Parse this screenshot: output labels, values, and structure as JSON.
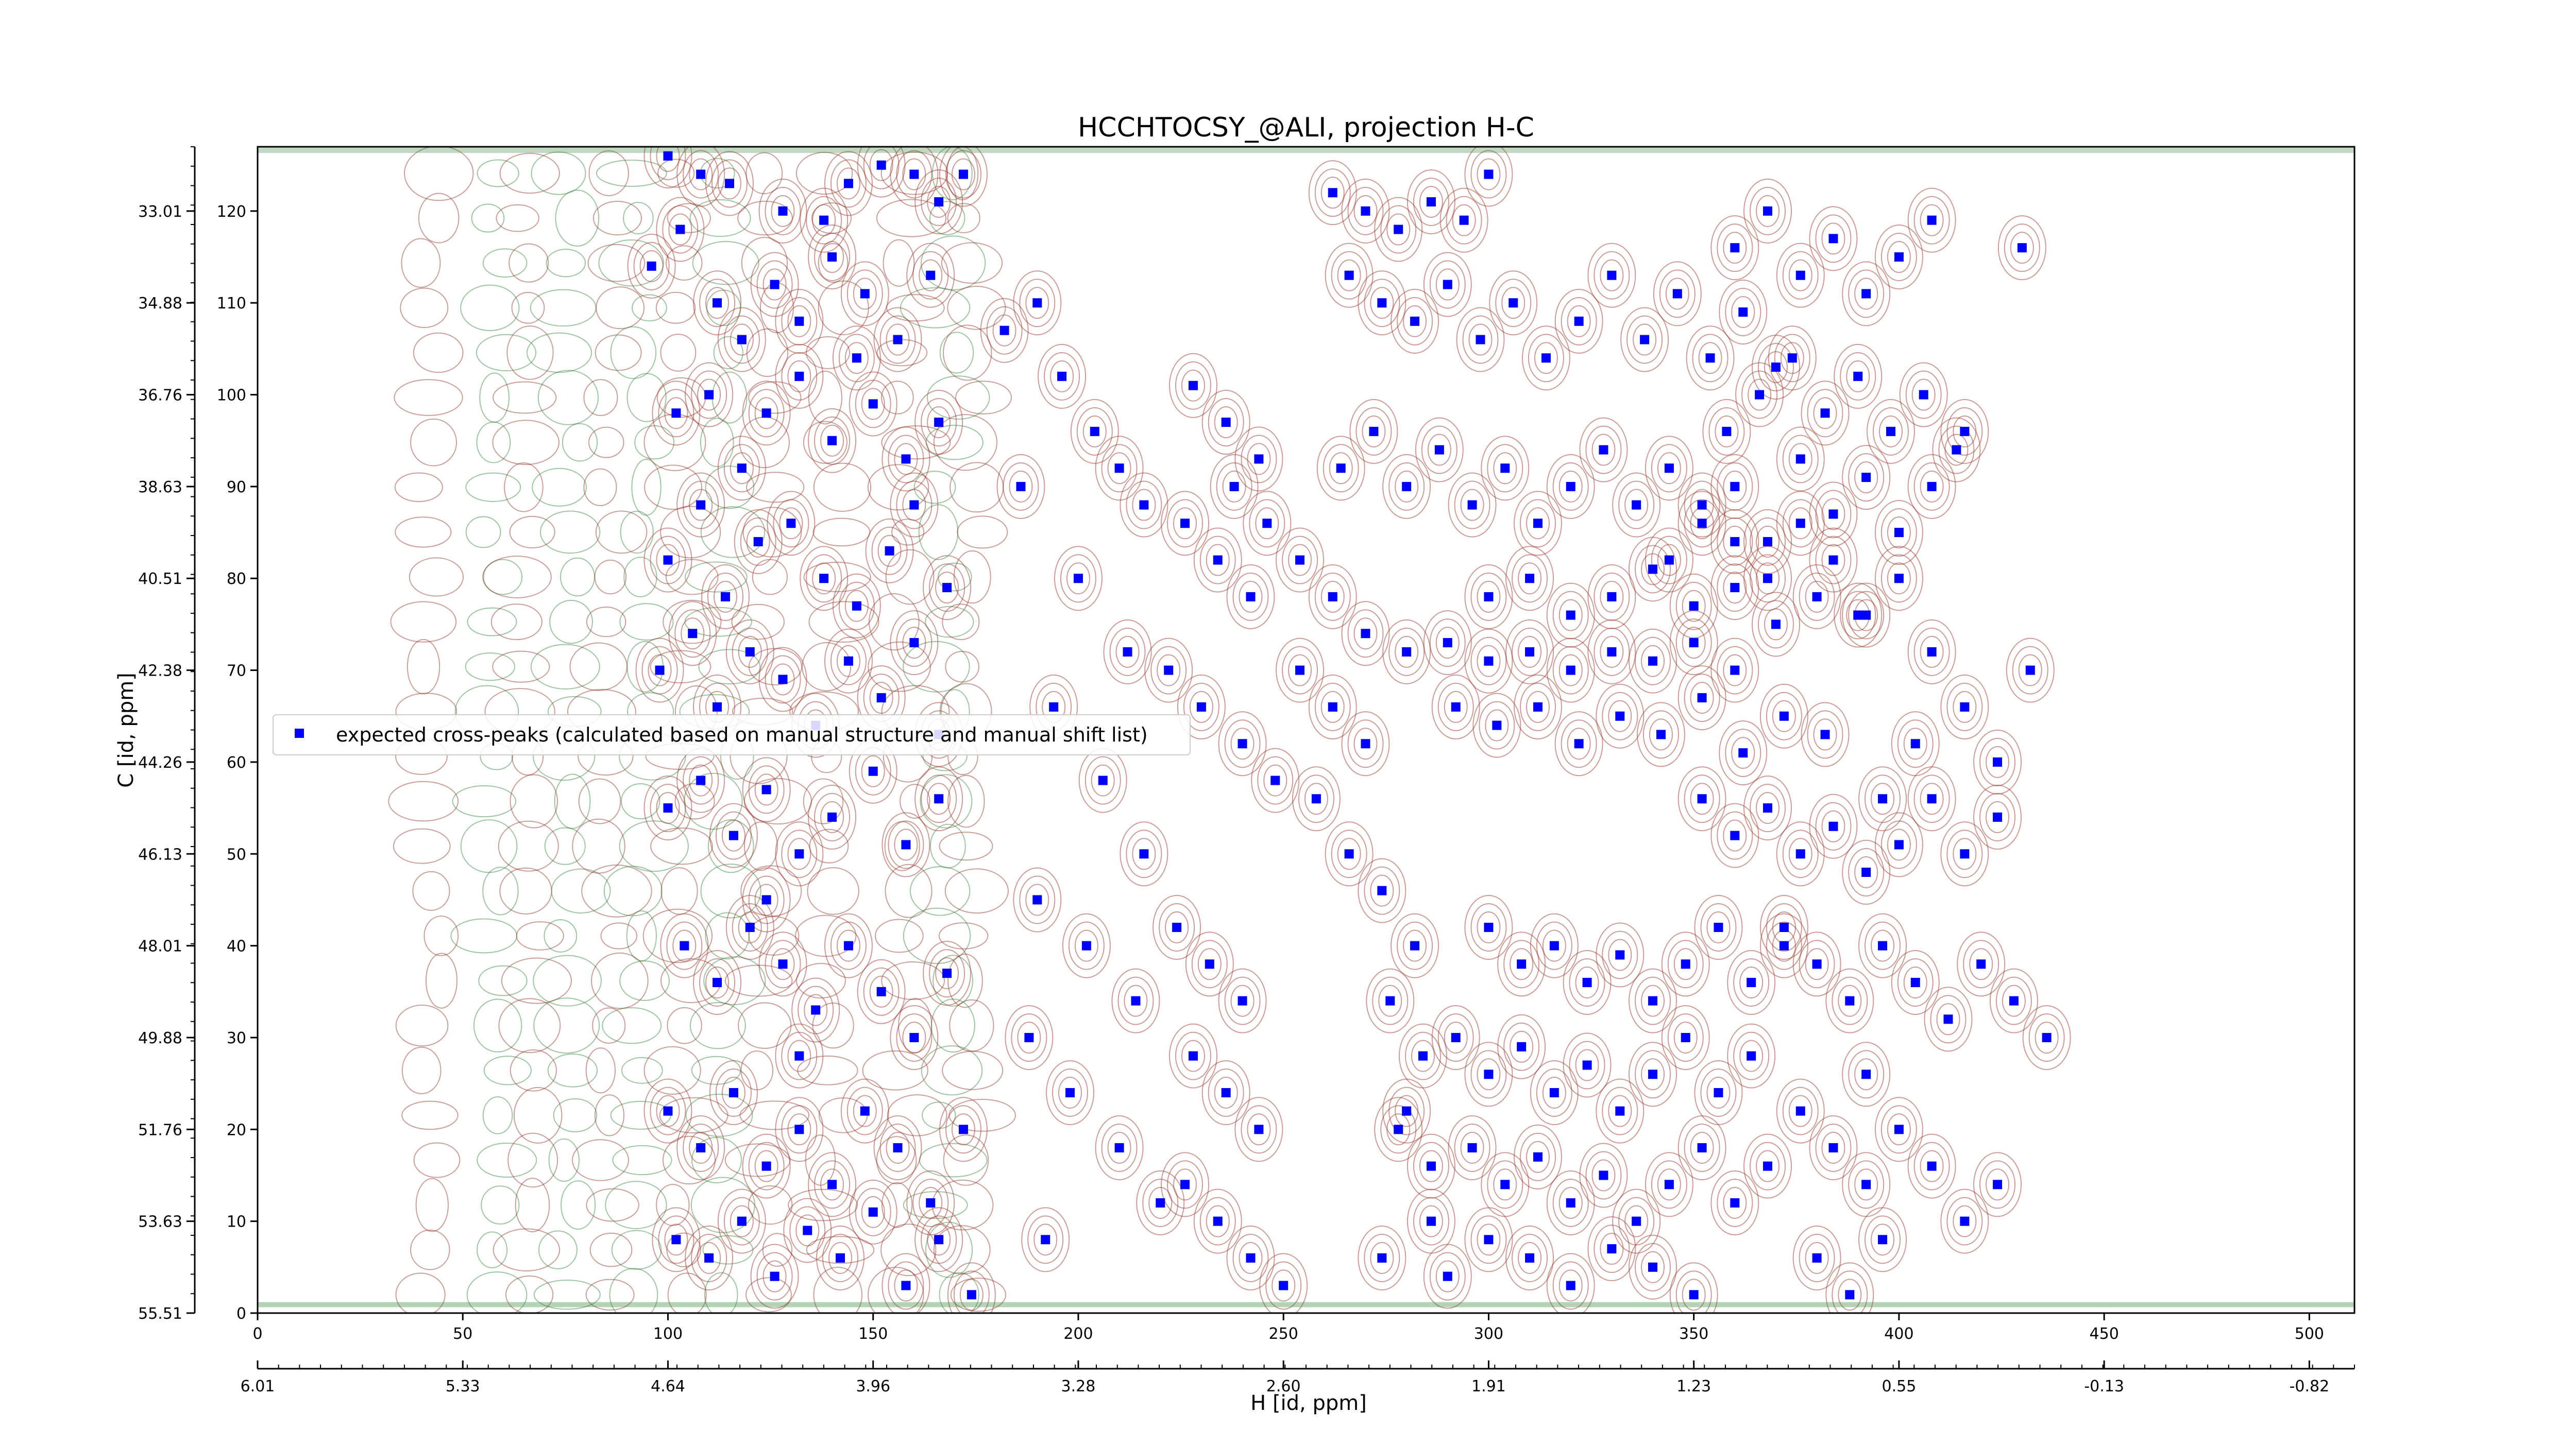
{
  "chart_data": {
    "type": "scatter",
    "title": "HCCHTOCSY_@ALI, projection H-C",
    "xlabel": "H [id, ppm]",
    "ylabel": "C [id, ppm]",
    "x_index_ticks": [
      "0",
      "50",
      "100",
      "150",
      "200",
      "250",
      "300",
      "350",
      "400",
      "450",
      "500"
    ],
    "x_ppm_ticks": [
      "6.01",
      "5.33",
      "4.64",
      "3.96",
      "3.28",
      "2.60",
      "1.91",
      "1.23",
      "0.55",
      "-0.13",
      "-0.82"
    ],
    "y_index_ticks": [
      "0",
      "10",
      "20",
      "30",
      "40",
      "50",
      "60",
      "70",
      "80",
      "90",
      "100",
      "110",
      "120"
    ],
    "y_ppm_ticks": [
      "55.51",
      "53.63",
      "51.76",
      "49.88",
      "48.01",
      "46.13",
      "44.26",
      "42.38",
      "40.51",
      "38.63",
      "36.76",
      "34.88",
      "33.01"
    ],
    "xlim": [
      0,
      511
    ],
    "ylim": [
      0,
      127
    ],
    "legend": {
      "placement": "center-left",
      "entries": [
        {
          "label": "expected cross-peaks (calculated based on manual structure and manual shift list)",
          "marker": "square",
          "color": "#0000ff"
        }
      ]
    },
    "series": [
      {
        "name": "expected cross-peaks (calculated based on manual structure and manual shift list)",
        "color": "#0000ff",
        "points": [
          [
            100,
            126
          ],
          [
            108,
            124
          ],
          [
            115,
            123
          ],
          [
            128,
            120
          ],
          [
            138,
            119
          ],
          [
            144,
            123
          ],
          [
            152,
            125
          ],
          [
            160,
            124
          ],
          [
            166,
            121
          ],
          [
            172,
            124
          ],
          [
            96,
            114
          ],
          [
            103,
            118
          ],
          [
            112,
            110
          ],
          [
            118,
            106
          ],
          [
            126,
            112
          ],
          [
            132,
            108
          ],
          [
            140,
            115
          ],
          [
            148,
            111
          ],
          [
            156,
            106
          ],
          [
            164,
            113
          ],
          [
            102,
            98
          ],
          [
            110,
            100
          ],
          [
            118,
            92
          ],
          [
            124,
            98
          ],
          [
            132,
            102
          ],
          [
            140,
            95
          ],
          [
            150,
            99
          ],
          [
            158,
            93
          ],
          [
            166,
            97
          ],
          [
            146,
            104
          ],
          [
            100,
            82
          ],
          [
            108,
            88
          ],
          [
            114,
            78
          ],
          [
            122,
            84
          ],
          [
            130,
            86
          ],
          [
            138,
            80
          ],
          [
            146,
            77
          ],
          [
            154,
            83
          ],
          [
            160,
            88
          ],
          [
            168,
            79
          ],
          [
            98,
            70
          ],
          [
            106,
            74
          ],
          [
            112,
            66
          ],
          [
            120,
            72
          ],
          [
            128,
            69
          ],
          [
            136,
            64
          ],
          [
            144,
            71
          ],
          [
            152,
            67
          ],
          [
            160,
            73
          ],
          [
            166,
            63
          ],
          [
            100,
            55
          ],
          [
            108,
            58
          ],
          [
            116,
            52
          ],
          [
            124,
            57
          ],
          [
            132,
            50
          ],
          [
            140,
            54
          ],
          [
            150,
            59
          ],
          [
            158,
            51
          ],
          [
            166,
            56
          ],
          [
            124,
            45
          ],
          [
            104,
            40
          ],
          [
            112,
            36
          ],
          [
            120,
            42
          ],
          [
            128,
            38
          ],
          [
            136,
            33
          ],
          [
            144,
            40
          ],
          [
            152,
            35
          ],
          [
            160,
            30
          ],
          [
            168,
            37
          ],
          [
            132,
            28
          ],
          [
            100,
            22
          ],
          [
            108,
            18
          ],
          [
            116,
            24
          ],
          [
            124,
            16
          ],
          [
            132,
            20
          ],
          [
            140,
            14
          ],
          [
            148,
            22
          ],
          [
            156,
            18
          ],
          [
            164,
            12
          ],
          [
            172,
            20
          ],
          [
            102,
            8
          ],
          [
            110,
            6
          ],
          [
            118,
            10
          ],
          [
            126,
            4
          ],
          [
            134,
            9
          ],
          [
            142,
            6
          ],
          [
            150,
            11
          ],
          [
            158,
            3
          ],
          [
            166,
            8
          ],
          [
            174,
            2
          ],
          [
            182,
            107
          ],
          [
            190,
            110
          ],
          [
            196,
            102
          ],
          [
            204,
            96
          ],
          [
            210,
            92
          ],
          [
            216,
            88
          ],
          [
            186,
            90
          ],
          [
            200,
            80
          ],
          [
            212,
            72
          ],
          [
            194,
            66
          ],
          [
            206,
            58
          ],
          [
            216,
            50
          ],
          [
            190,
            45
          ],
          [
            202,
            40
          ],
          [
            214,
            34
          ],
          [
            188,
            30
          ],
          [
            198,
            24
          ],
          [
            210,
            18
          ],
          [
            220,
            12
          ],
          [
            192,
            8
          ],
          [
            228,
            101
          ],
          [
            236,
            97
          ],
          [
            244,
            93
          ],
          [
            226,
            86
          ],
          [
            234,
            82
          ],
          [
            242,
            78
          ],
          [
            222,
            70
          ],
          [
            230,
            66
          ],
          [
            240,
            62
          ],
          [
            248,
            58
          ],
          [
            224,
            42
          ],
          [
            232,
            38
          ],
          [
            240,
            34
          ],
          [
            228,
            28
          ],
          [
            236,
            24
          ],
          [
            244,
            20
          ],
          [
            226,
            14
          ],
          [
            234,
            10
          ],
          [
            242,
            6
          ],
          [
            250,
            3
          ],
          [
            262,
            122
          ],
          [
            270,
            120
          ],
          [
            278,
            118
          ],
          [
            286,
            121
          ],
          [
            294,
            119
          ],
          [
            300,
            124
          ],
          [
            266,
            113
          ],
          [
            274,
            110
          ],
          [
            282,
            108
          ],
          [
            290,
            112
          ],
          [
            298,
            106
          ],
          [
            306,
            110
          ],
          [
            314,
            104
          ],
          [
            322,
            108
          ],
          [
            330,
            113
          ],
          [
            338,
            106
          ],
          [
            346,
            111
          ],
          [
            354,
            104
          ],
          [
            362,
            109
          ],
          [
            370,
            103
          ],
          [
            264,
            92
          ],
          [
            272,
            96
          ],
          [
            280,
            90
          ],
          [
            288,
            94
          ],
          [
            296,
            88
          ],
          [
            304,
            92
          ],
          [
            312,
            86
          ],
          [
            320,
            90
          ],
          [
            328,
            94
          ],
          [
            336,
            88
          ],
          [
            344,
            92
          ],
          [
            352,
            86
          ],
          [
            360,
            90
          ],
          [
            368,
            84
          ],
          [
            376,
            93
          ],
          [
            384,
            87
          ],
          [
            392,
            91
          ],
          [
            400,
            85
          ],
          [
            408,
            90
          ],
          [
            416,
            96
          ],
          [
            270,
            74
          ],
          [
            280,
            72
          ],
          [
            290,
            73
          ],
          [
            300,
            71
          ],
          [
            310,
            72
          ],
          [
            320,
            70
          ],
          [
            330,
            72
          ],
          [
            340,
            71
          ],
          [
            350,
            73
          ],
          [
            360,
            70
          ],
          [
            292,
            66
          ],
          [
            302,
            64
          ],
          [
            312,
            66
          ],
          [
            322,
            62
          ],
          [
            332,
            65
          ],
          [
            342,
            63
          ],
          [
            352,
            67
          ],
          [
            362,
            61
          ],
          [
            372,
            65
          ],
          [
            382,
            63
          ],
          [
            300,
            78
          ],
          [
            310,
            80
          ],
          [
            320,
            76
          ],
          [
            330,
            78
          ],
          [
            340,
            81
          ],
          [
            350,
            77
          ],
          [
            360,
            79
          ],
          [
            370,
            75
          ],
          [
            380,
            78
          ],
          [
            390,
            76
          ],
          [
            352,
            56
          ],
          [
            360,
            52
          ],
          [
            368,
            55
          ],
          [
            376,
            50
          ],
          [
            384,
            53
          ],
          [
            392,
            48
          ],
          [
            400,
            51
          ],
          [
            408,
            56
          ],
          [
            416,
            50
          ],
          [
            424,
            54
          ],
          [
            300,
            42
          ],
          [
            308,
            38
          ],
          [
            316,
            40
          ],
          [
            324,
            36
          ],
          [
            332,
            39
          ],
          [
            340,
            34
          ],
          [
            348,
            38
          ],
          [
            356,
            42
          ],
          [
            364,
            36
          ],
          [
            372,
            40
          ],
          [
            292,
            30
          ],
          [
            300,
            26
          ],
          [
            308,
            29
          ],
          [
            316,
            24
          ],
          [
            324,
            27
          ],
          [
            332,
            22
          ],
          [
            340,
            26
          ],
          [
            348,
            30
          ],
          [
            356,
            24
          ],
          [
            364,
            28
          ],
          [
            296,
            18
          ],
          [
            304,
            14
          ],
          [
            312,
            17
          ],
          [
            320,
            12
          ],
          [
            328,
            15
          ],
          [
            336,
            10
          ],
          [
            344,
            14
          ],
          [
            352,
            18
          ],
          [
            360,
            12
          ],
          [
            368,
            16
          ],
          [
            280,
            22
          ],
          [
            286,
            10
          ],
          [
            274,
            6
          ],
          [
            290,
            4
          ],
          [
            300,
            8
          ],
          [
            310,
            6
          ],
          [
            320,
            3
          ],
          [
            330,
            7
          ],
          [
            340,
            5
          ],
          [
            350,
            2
          ],
          [
            372,
            42
          ],
          [
            380,
            38
          ],
          [
            388,
            34
          ],
          [
            396,
            40
          ],
          [
            404,
            36
          ],
          [
            412,
            32
          ],
          [
            420,
            38
          ],
          [
            428,
            34
          ],
          [
            436,
            30
          ],
          [
            392,
            26
          ],
          [
            376,
            22
          ],
          [
            384,
            18
          ],
          [
            392,
            14
          ],
          [
            400,
            20
          ],
          [
            408,
            16
          ],
          [
            416,
            10
          ],
          [
            424,
            14
          ],
          [
            380,
            6
          ],
          [
            388,
            2
          ],
          [
            396,
            8
          ],
          [
            358,
            96
          ],
          [
            366,
            100
          ],
          [
            374,
            104
          ],
          [
            382,
            98
          ],
          [
            390,
            102
          ],
          [
            398,
            96
          ],
          [
            406,
            100
          ],
          [
            414,
            94
          ],
          [
            360,
            116
          ],
          [
            368,
            120
          ],
          [
            376,
            113
          ],
          [
            384,
            117
          ],
          [
            392,
            111
          ],
          [
            400,
            115
          ],
          [
            408,
            119
          ],
          [
            430,
            116
          ],
          [
            344,
            82
          ],
          [
            352,
            88
          ],
          [
            360,
            84
          ],
          [
            368,
            80
          ],
          [
            376,
            86
          ],
          [
            384,
            82
          ],
          [
            392,
            76
          ],
          [
            400,
            80
          ],
          [
            408,
            72
          ],
          [
            416,
            66
          ],
          [
            424,
            60
          ],
          [
            432,
            70
          ],
          [
            396,
            56
          ],
          [
            404,
            62
          ],
          [
            238,
            90
          ],
          [
            246,
            86
          ],
          [
            254,
            82
          ],
          [
            262,
            78
          ],
          [
            254,
            70
          ],
          [
            262,
            66
          ],
          [
            270,
            62
          ],
          [
            258,
            56
          ],
          [
            266,
            50
          ],
          [
            274,
            46
          ],
          [
            282,
            40
          ],
          [
            276,
            34
          ],
          [
            284,
            28
          ],
          [
            278,
            20
          ],
          [
            286,
            16
          ]
        ]
      }
    ]
  }
}
